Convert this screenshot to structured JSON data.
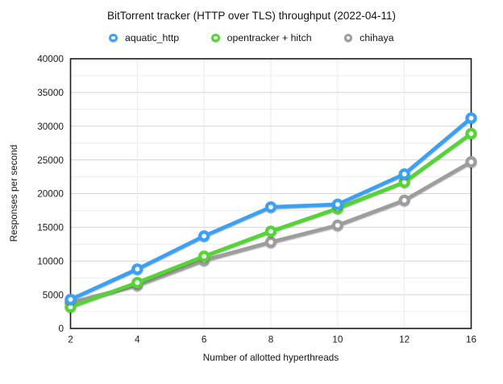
{
  "chart_data": {
    "type": "line",
    "title": "BitTorrent tracker (HTTP over TLS) throughput (2022-04-11)",
    "xlabel": "Number of allotted hyperthreads",
    "ylabel": "Responses per second",
    "x": [
      2,
      4,
      6,
      8,
      10,
      12,
      16
    ],
    "x_tick_labels": [
      "2",
      "4",
      "6",
      "8",
      "10",
      "12",
      "16"
    ],
    "x_axis_type": "categorical-equal-spacing",
    "ylim": [
      0,
      40000
    ],
    "y_major_step": 5000,
    "y_minor_step": 2500,
    "y_tick_labels": [
      "0",
      "5000",
      "10000",
      "15000",
      "20000",
      "25000",
      "30000",
      "35000",
      "40000"
    ],
    "grid": true,
    "legend_position": "top",
    "marker_style": "donut-circle",
    "series": [
      {
        "name": "aquatic_http",
        "color": "#3ba1f6",
        "values": [
          4300,
          8800,
          13700,
          18000,
          18400,
          22900,
          31200
        ]
      },
      {
        "name": "opentracker + hitch",
        "color": "#55d435",
        "values": [
          3200,
          6800,
          10700,
          14400,
          17800,
          21700,
          28900
        ]
      },
      {
        "name": "chihaya",
        "color": "#9d9d9d",
        "values": [
          3800,
          6400,
          10100,
          12800,
          15300,
          19000,
          24700
        ]
      }
    ]
  },
  "colors": {
    "background": "#ffffff",
    "plot_border": "#1a1a1a",
    "major_gridline": "#d5d5d5",
    "minor_gridline": "#ececec",
    "vertical_gridline": "#e8e8e8",
    "text": "#1c1c1c"
  }
}
